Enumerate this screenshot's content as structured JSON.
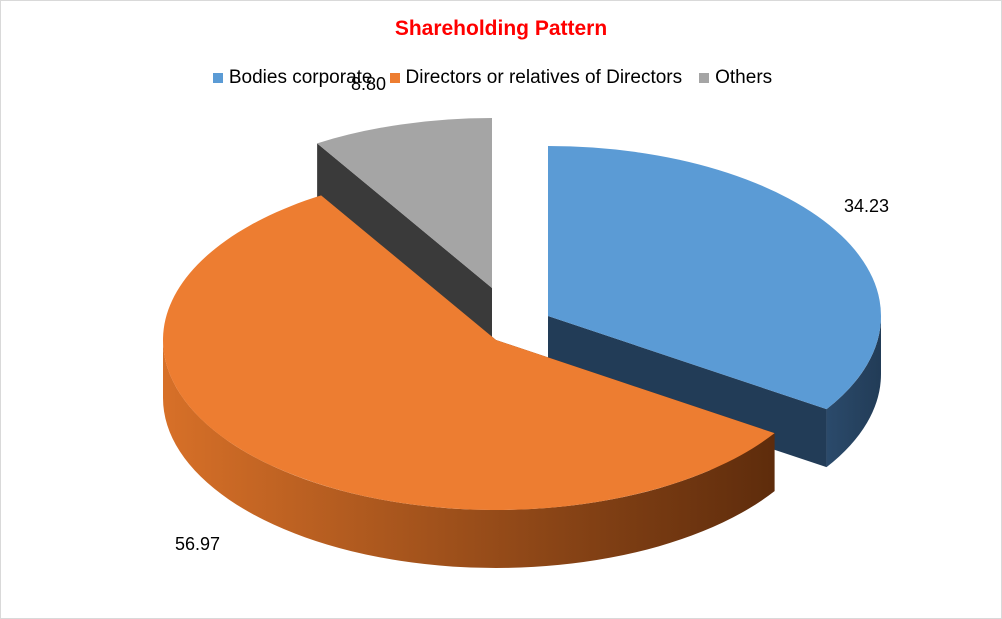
{
  "chart_data": {
    "type": "pie",
    "title": "Shareholding Pattern",
    "categories": [
      "Bodies corporate",
      "Directors or relatives of Directors",
      "Others"
    ],
    "values": [
      34.23,
      56.97,
      8.8
    ],
    "data_labels": [
      "34.23",
      "56.97",
      "8.80"
    ],
    "legend_placement": "top",
    "three_d": true,
    "exploded": true
  },
  "colors": {
    "title": "#ff0000",
    "series": [
      {
        "top": "#5b9bd5",
        "side_dark": "#223c57",
        "side_light": "#2b4a6b"
      },
      {
        "top": "#ed7d31",
        "side_dark": "#5e2c0c",
        "side_light": "#d77028"
      },
      {
        "top": "#a5a5a5",
        "side_dark": "#3a3a3a",
        "side_light": "#4a4a4a"
      }
    ]
  }
}
